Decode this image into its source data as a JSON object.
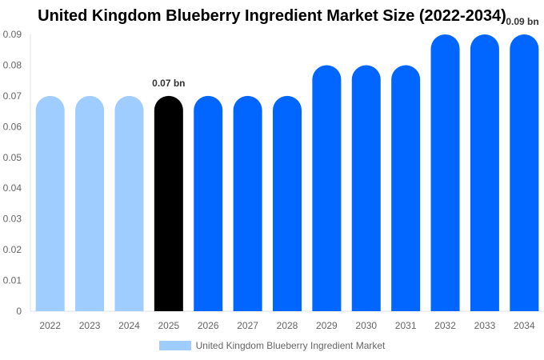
{
  "chart_data": {
    "type": "bar",
    "title": "United Kingdom Blueberry Ingredient Market Size (2022-2034)",
    "categories": [
      "2022",
      "2023",
      "2024",
      "2025",
      "2026",
      "2027",
      "2028",
      "2029",
      "2030",
      "2031",
      "2032",
      "2033",
      "2034"
    ],
    "series": [
      {
        "name": "United Kingdom Blueberry Ingredient Market",
        "values": [
          0.07,
          0.07,
          0.07,
          0.07,
          0.07,
          0.07,
          0.07,
          0.08,
          0.08,
          0.08,
          0.09,
          0.09,
          0.09
        ]
      }
    ],
    "bar_colors": [
      "#a0cdff",
      "#a0cdff",
      "#a0cdff",
      "#000000",
      "#0066ff",
      "#0066ff",
      "#0066ff",
      "#0066ff",
      "#0066ff",
      "#0066ff",
      "#0066ff",
      "#0066ff",
      "#0066ff"
    ],
    "data_labels": [
      {
        "index": 3,
        "text": "0.07 bn"
      },
      {
        "index": 12,
        "text": "0.09 bn"
      }
    ],
    "yticks": [
      "0",
      "0.01",
      "0.02",
      "0.03",
      "0.04",
      "0.05",
      "0.06",
      "0.07",
      "0.08",
      "0.09"
    ],
    "ylim": [
      0,
      0.09
    ],
    "xlabel": "",
    "ylabel": "",
    "grid": false,
    "legend_position": "bottom",
    "legend_color": "#a0cdff"
  }
}
